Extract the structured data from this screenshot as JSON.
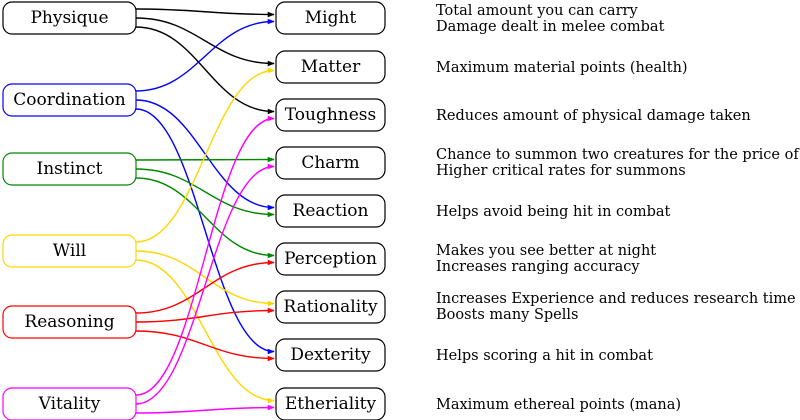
{
  "attributes": [
    {
      "id": "physique",
      "label": "Physique",
      "color": "#000000"
    },
    {
      "id": "coordination",
      "label": "Coordination",
      "color": "#0000ff"
    },
    {
      "id": "instinct",
      "label": "Instinct",
      "color": "#008800"
    },
    {
      "id": "will",
      "label": "Will",
      "color": "#ffd700"
    },
    {
      "id": "reasoning",
      "label": "Reasoning",
      "color": "#ff0000"
    },
    {
      "id": "vitality",
      "label": "Vitality",
      "color": "#ff00ff"
    }
  ],
  "stats": [
    {
      "id": "might",
      "label": "Might",
      "description": [
        "Total amount you can carry",
        "Damage dealt in melee combat"
      ]
    },
    {
      "id": "matter",
      "label": "Matter",
      "description": [
        "Maximum material points (health)"
      ]
    },
    {
      "id": "toughness",
      "label": "Toughness",
      "description": [
        "Reduces amount of physical damage taken"
      ]
    },
    {
      "id": "charm",
      "label": "Charm",
      "description": [
        "Chance to summon two creatures for the price of one",
        "Higher critical rates for summons"
      ]
    },
    {
      "id": "reaction",
      "label": "Reaction",
      "description": [
        "Helps avoid being hit in combat"
      ]
    },
    {
      "id": "perception",
      "label": "Perception",
      "description": [
        "Makes you see better at night",
        "Increases ranging accuracy"
      ]
    },
    {
      "id": "rationality",
      "label": "Rationality",
      "description": [
        "Increases Experience and reduces research time",
        "Boosts many Spells"
      ]
    },
    {
      "id": "dexterity",
      "label": "Dexterity",
      "description": [
        "Helps scoring a hit in combat"
      ]
    },
    {
      "id": "etheriality",
      "label": "Etheriality",
      "description": [
        "Maximum ethereal points (mana)"
      ]
    }
  ],
  "edges": [
    {
      "from": "physique",
      "to": "might"
    },
    {
      "from": "physique",
      "to": "matter"
    },
    {
      "from": "physique",
      "to": "toughness"
    },
    {
      "from": "coordination",
      "to": "might"
    },
    {
      "from": "coordination",
      "to": "reaction"
    },
    {
      "from": "coordination",
      "to": "dexterity"
    },
    {
      "from": "instinct",
      "to": "charm"
    },
    {
      "from": "instinct",
      "to": "reaction"
    },
    {
      "from": "instinct",
      "to": "perception"
    },
    {
      "from": "will",
      "to": "matter"
    },
    {
      "from": "will",
      "to": "rationality"
    },
    {
      "from": "will",
      "to": "etheriality"
    },
    {
      "from": "reasoning",
      "to": "perception"
    },
    {
      "from": "reasoning",
      "to": "rationality"
    },
    {
      "from": "reasoning",
      "to": "dexterity"
    },
    {
      "from": "vitality",
      "to": "toughness"
    },
    {
      "from": "vitality",
      "to": "charm"
    },
    {
      "from": "vitality",
      "to": "etheriality"
    }
  ]
}
